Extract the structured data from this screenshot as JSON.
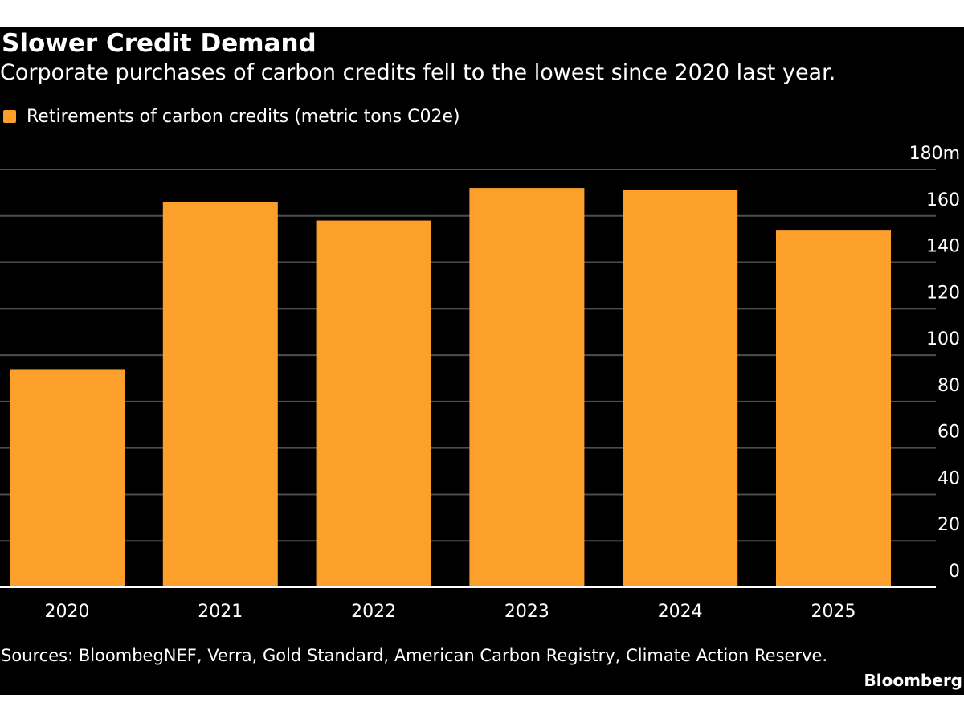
{
  "colors": {
    "background": "#000000",
    "bar": "#FC9F2B",
    "grid": "#4D4D4D",
    "axis": "#FFFFFF",
    "text": "#FFFFFF"
  },
  "header": {
    "title": "Slower Credit Demand",
    "subtitle": "Corporate purchases of carbon credits fell to the lowest since 2020 last year."
  },
  "footer": {
    "source": "Sources: BloombegNEF, Verra, Gold Standard, American Carbon Registry, Climate Action Reserve.",
    "brand": "Bloomberg"
  },
  "chart_data": {
    "type": "bar",
    "categories": [
      "2020",
      "2021",
      "2022",
      "2023",
      "2024",
      "2025"
    ],
    "series": [
      {
        "name": "Retirements of carbon credits (metric tons C02e)",
        "values": [
          94,
          166,
          158,
          172,
          171,
          154
        ],
        "color": "#FC9F2B"
      }
    ],
    "ylim": [
      0,
      180
    ],
    "yticks": [
      0,
      20,
      40,
      60,
      80,
      100,
      120,
      140,
      160,
      180
    ],
    "ytick_labels": [
      "0",
      "20",
      "40",
      "60",
      "80",
      "100",
      "120",
      "140",
      "160",
      "180m"
    ],
    "y_axis_side": "right",
    "grid": true,
    "legend_position": "top-left"
  }
}
